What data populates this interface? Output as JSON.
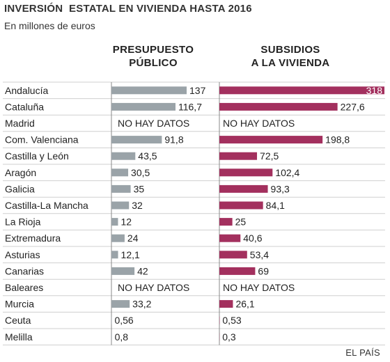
{
  "header": {
    "title": "INVERSIÓN  ESTATAL EN VIVIENDA HASTA 2016",
    "subtitle": "En millones de euros",
    "col_left_line1": "PRESUPUESTO",
    "col_left_line2": "PÚBLICO",
    "col_right_line1": "SUBSIDIOS",
    "col_right_line2": "A LA VIVIENDA"
  },
  "source": "EL PAÍS",
  "colors": {
    "left_bar": "#9aa3a8",
    "right_bar": "#a3305e",
    "axis": "#888888",
    "row_line": "#cfcfcf"
  },
  "chart_data": {
    "type": "bar",
    "orientation": "horizontal",
    "categories": [
      "Andalucía",
      "Cataluña",
      "Madrid",
      "Com. Valenciana",
      "Castilla y  León",
      "Aragón",
      "Galicia",
      "Castilla-La Mancha",
      "La Rioja",
      "Extremadura",
      "Asturias",
      "Canarias",
      "Baleares",
      "Murcia",
      "Ceuta",
      "Melilla"
    ],
    "series": [
      {
        "name": "PRESUPUESTO PÚBLICO",
        "values": [
          137,
          116.7,
          null,
          91.8,
          43.5,
          30.5,
          35,
          32,
          12,
          24,
          12.1,
          42,
          null,
          33.2,
          0.56,
          0.8
        ],
        "labels": [
          "137",
          "116,7",
          "NO HAY DATOS",
          "91,8",
          "43,5",
          "30,5",
          "35",
          "32",
          "12",
          "24",
          "12,1",
          "42",
          "NO HAY DATOS",
          "33,2",
          "0,56",
          "0,8"
        ]
      },
      {
        "name": "SUBSIDIOS A LA VIVIENDA",
        "values": [
          318,
          227.6,
          null,
          198.8,
          72.5,
          102.4,
          93.3,
          84.1,
          25,
          40.6,
          53.4,
          69,
          null,
          26.1,
          0.53,
          0.3
        ],
        "labels": [
          "318",
          "227,6",
          "NO HAY DATOS",
          "198,8",
          "72,5",
          "102,4",
          "93,3",
          "84,1",
          "25",
          "40,6",
          "53,4",
          "69",
          "NO HAY DATOS",
          "26,1",
          "0,53",
          "0,3"
        ]
      }
    ]
  }
}
